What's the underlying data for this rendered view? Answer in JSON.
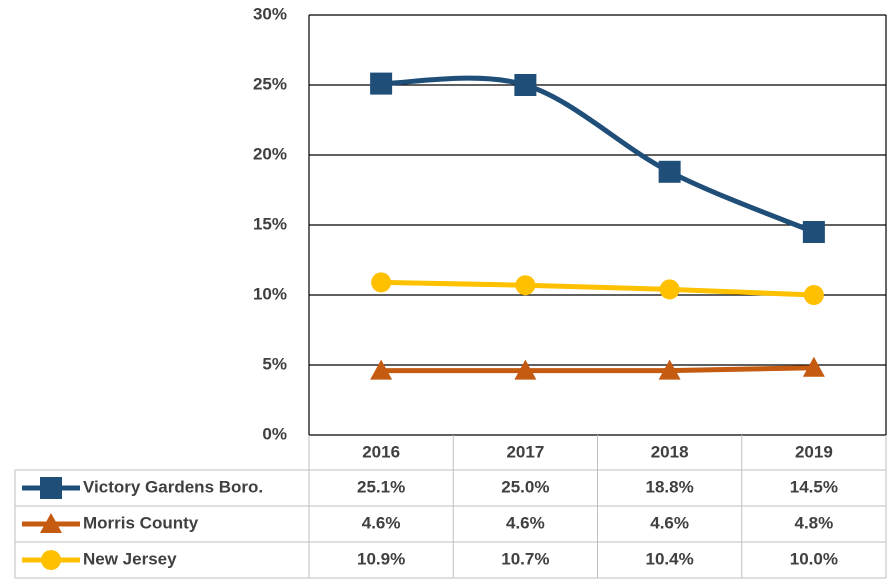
{
  "chart_data": {
    "type": "line",
    "categories": [
      "2016",
      "2017",
      "2018",
      "2019"
    ],
    "series": [
      {
        "name": "Victory Gardens Boro.",
        "color": "#1f4e79",
        "marker": "square",
        "smooth": true,
        "values": [
          25.1,
          25.0,
          18.8,
          14.5
        ],
        "value_labels": [
          "25.1%",
          "25.0%",
          "18.8%",
          "14.5%"
        ]
      },
      {
        "name": "Morris County",
        "color": "#c55a11",
        "marker": "triangle",
        "smooth": false,
        "values": [
          4.6,
          4.6,
          4.6,
          4.8
        ],
        "value_labels": [
          "4.6%",
          "4.6%",
          "4.6%",
          "4.8%"
        ]
      },
      {
        "name": "New Jersey",
        "color": "#ffc000",
        "marker": "circle",
        "smooth": false,
        "values": [
          10.9,
          10.7,
          10.4,
          10.0
        ],
        "value_labels": [
          "10.9%",
          "10.7%",
          "10.4%",
          "10.0%"
        ]
      }
    ],
    "ylim": [
      0,
      30
    ],
    "yticks": [
      {
        "value": 0,
        "label": "0%"
      },
      {
        "value": 5,
        "label": "5%"
      },
      {
        "value": 10,
        "label": "10%"
      },
      {
        "value": 15,
        "label": "15%"
      },
      {
        "value": 20,
        "label": "20%"
      },
      {
        "value": 25,
        "label": "25%"
      },
      {
        "value": 30,
        "label": "30%"
      }
    ],
    "grid": true
  }
}
